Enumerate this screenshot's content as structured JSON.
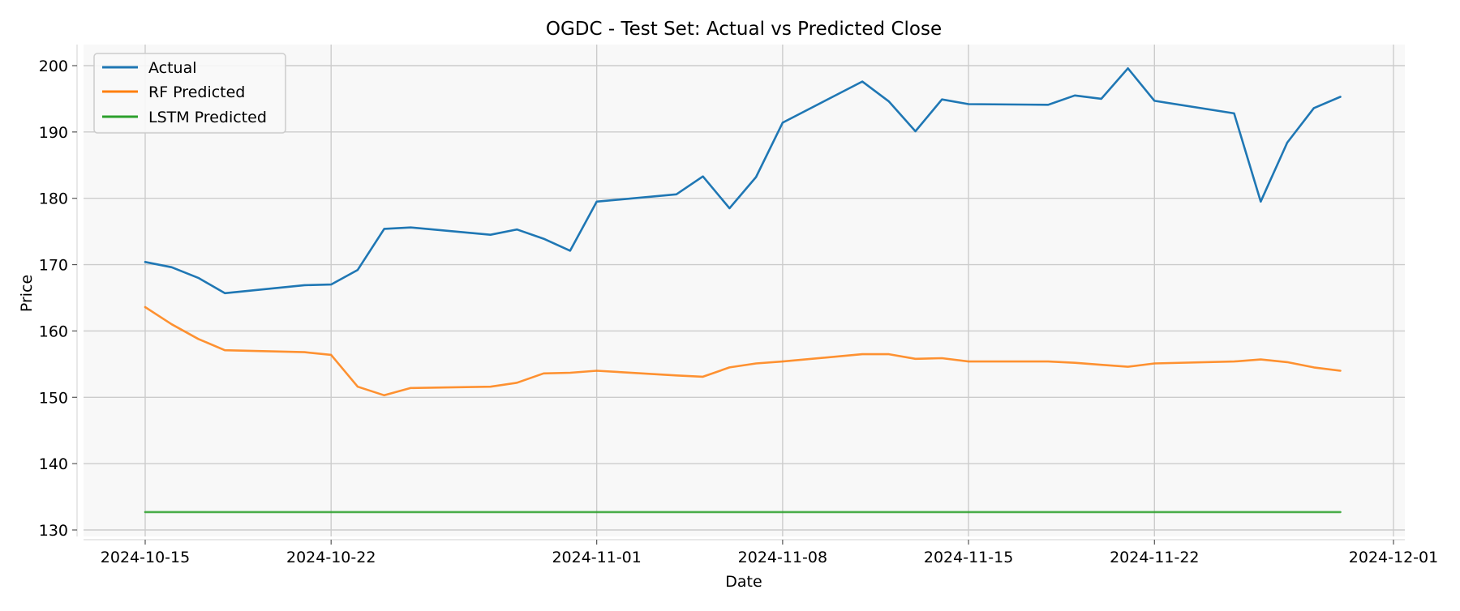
{
  "chart_data": {
    "type": "line",
    "title": "OGDC - Test Set: Actual vs Predicted Close",
    "xlabel": "Date",
    "ylabel": "Price",
    "xlim": [
      "2024-10-15",
      "2024-12-01"
    ],
    "ylim": [
      130,
      200
    ],
    "x_ticks": [
      "2024-10-15",
      "2024-10-22",
      "2024-11-01",
      "2024-11-08",
      "2024-11-15",
      "2024-11-22",
      "2024-12-01"
    ],
    "y_ticks": [
      130,
      140,
      150,
      160,
      170,
      180,
      190,
      200
    ],
    "grid": true,
    "legend_position": "upper-left",
    "x": [
      "2024-10-15",
      "2024-10-16",
      "2024-10-17",
      "2024-10-18",
      "2024-10-21",
      "2024-10-22",
      "2024-10-23",
      "2024-10-24",
      "2024-10-25",
      "2024-10-28",
      "2024-10-29",
      "2024-10-30",
      "2024-10-31",
      "2024-11-01",
      "2024-11-04",
      "2024-11-05",
      "2024-11-06",
      "2024-11-07",
      "2024-11-08",
      "2024-11-11",
      "2024-11-12",
      "2024-11-13",
      "2024-11-14",
      "2024-11-15",
      "2024-11-18",
      "2024-11-19",
      "2024-11-20",
      "2024-11-21",
      "2024-11-22",
      "2024-11-25",
      "2024-11-26",
      "2024-11-27",
      "2024-11-28",
      "2024-11-29"
    ],
    "series": [
      {
        "name": "Actual",
        "color": "#1f77b4",
        "values": [
          170.4,
          169.6,
          168.0,
          165.7,
          166.9,
          167.0,
          169.2,
          175.4,
          175.6,
          174.5,
          175.3,
          173.9,
          172.1,
          179.5,
          180.6,
          183.3,
          178.5,
          183.2,
          191.4,
          197.6,
          194.6,
          190.1,
          194.9,
          194.2,
          194.1,
          195.5,
          195.0,
          199.6,
          194.7,
          192.8,
          179.5,
          188.4,
          193.6,
          195.3
        ]
      },
      {
        "name": "RF Predicted",
        "color": "#ff7f0e",
        "values": [
          163.6,
          161.0,
          158.8,
          157.1,
          156.8,
          156.4,
          151.6,
          150.3,
          151.4,
          151.6,
          152.2,
          153.6,
          153.7,
          154.0,
          153.3,
          153.1,
          154.5,
          155.1,
          155.4,
          156.5,
          156.5,
          155.8,
          155.9,
          155.4,
          155.4,
          155.2,
          154.9,
          154.6,
          155.1,
          155.4,
          155.7,
          155.3,
          154.5,
          154.0
        ]
      },
      {
        "name": "LSTM Predicted",
        "color": "#2ca02c",
        "values": [
          132.7,
          132.7,
          132.7,
          132.7,
          132.7,
          132.7,
          132.7,
          132.7,
          132.7,
          132.7,
          132.7,
          132.7,
          132.7,
          132.7,
          132.7,
          132.7,
          132.7,
          132.7,
          132.7,
          132.7,
          132.7,
          132.7,
          132.7,
          132.7,
          132.7,
          132.7,
          132.7,
          132.7,
          132.7,
          132.7,
          132.7,
          132.7,
          132.7,
          132.7
        ]
      }
    ]
  }
}
